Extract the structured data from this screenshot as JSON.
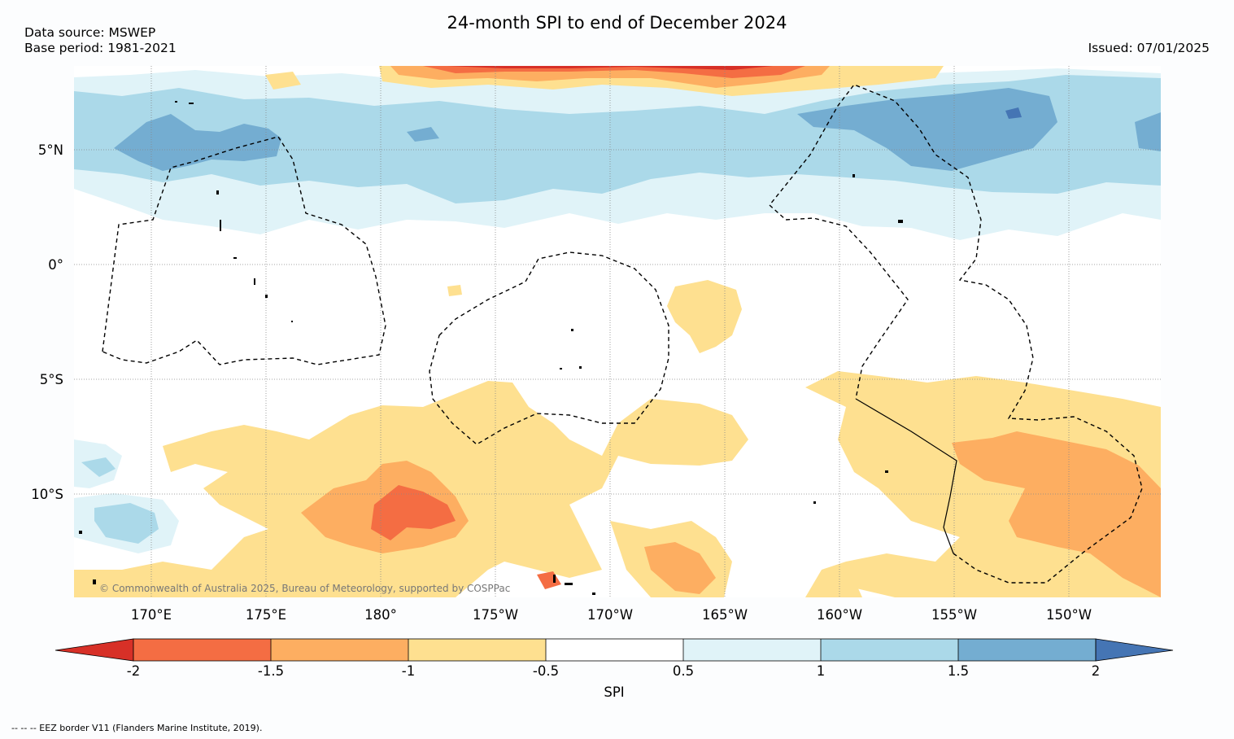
{
  "header": {
    "title": "24-month SPI to end of December 2024",
    "data_source": "Data source: MSWEP",
    "base_period": "Base period: 1981-2021",
    "issued": "Issued: 07/01/2025"
  },
  "map": {
    "lat_labels": [
      "5°N",
      "0°",
      "5°S",
      "10°S"
    ],
    "lon_labels": [
      "170°E",
      "175°E",
      "180°",
      "175°W",
      "170°W",
      "165°W",
      "160°W",
      "155°W",
      "150°W"
    ],
    "copyright": "© Commonwealth of Australia 2025, Bureau of Meteorology, supported by COSPPac"
  },
  "colorbar": {
    "label": "SPI",
    "ticks": [
      "-2",
      "-1.5",
      "-1",
      "-0.5",
      "0.5",
      "1",
      "1.5",
      "2"
    ],
    "colors": [
      "#d73027",
      "#f46d43",
      "#fdae61",
      "#fee090",
      "#ffffff",
      "#e0f3f8",
      "#abd9e9",
      "#74add1",
      "#4575b4"
    ]
  },
  "footer": {
    "legend_text": "--  --  -- EEZ border V11 (Flanders Marine Institute, 2019)."
  }
}
